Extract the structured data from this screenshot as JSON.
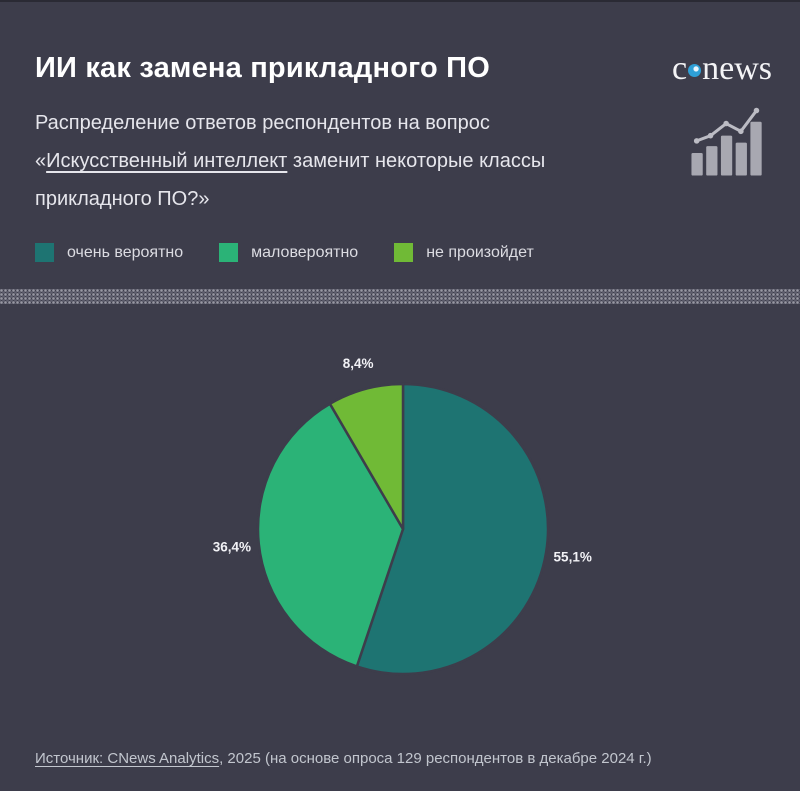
{
  "header": {
    "title": "ИИ как замена прикладного ПО",
    "subtitle_prefix": "Распределение ответов респондентов на вопрос «",
    "subtitle_link": "Искусственный интеллект",
    "subtitle_suffix": " заменит некоторые классы прикладного ПО?»",
    "logo": {
      "part1": "c",
      "part2": "news"
    }
  },
  "legend": {
    "items": [
      {
        "label": "очень вероятно"
      },
      {
        "label": "маловероятно"
      },
      {
        "label": "не произойдет"
      }
    ]
  },
  "chart_data": {
    "type": "pie",
    "title": "ИИ как замена прикладного ПО",
    "categories": [
      "очень вероятно",
      "маловероятно",
      "не произойдет"
    ],
    "values": [
      55.1,
      36.4,
      8.4
    ],
    "labels": [
      "55,1%",
      "36,4%",
      "8,4%"
    ],
    "colors": [
      "#1e7472",
      "#2bb377",
      "#70ba36"
    ],
    "start_angle_deg": 0,
    "direction": "clockwise",
    "legend_position": "top",
    "background": "#3d3d4b"
  },
  "footer": {
    "source_link": "Источник: CNews Analytics",
    "source_rest": ", 2025 (на основе опроса 129 респондентов в декабре 2024 г.)"
  }
}
